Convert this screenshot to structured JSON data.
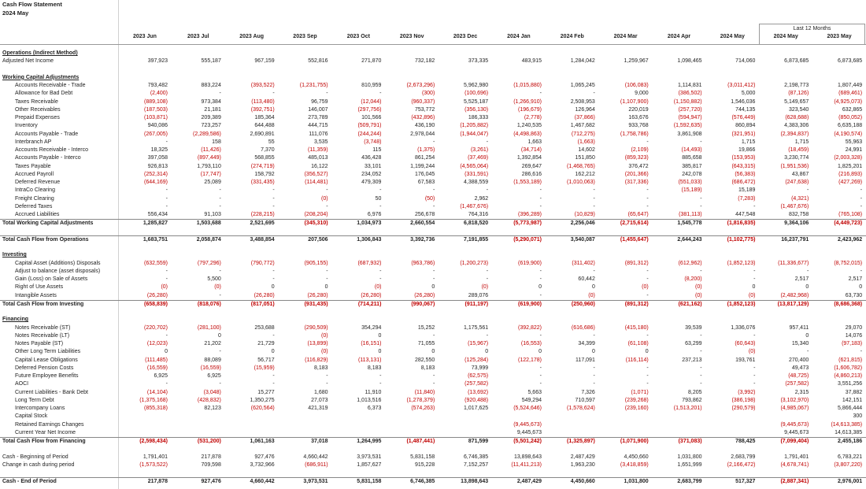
{
  "header": {
    "title": "Cash Flow Statement",
    "subtitle": "2024 May",
    "group_label": "Last 12 Months",
    "columns": [
      "2023 Jun",
      "2023 Jul",
      "2023 Aug",
      "2023 Sep",
      "2023 Oct",
      "2023 Nov",
      "2023 Dec",
      "2024 Jan",
      "2024 Feb",
      "2024 Mar",
      "2024 Apr",
      "2024 May",
      "2024 May",
      "2023 May"
    ]
  },
  "blocks": [
    [
      {
        "heading": "Operations (Indirect Method)"
      },
      {
        "label": "Adjusted Net Income",
        "values": [
          "397,923",
          "555,187",
          "967,159",
          "552,816",
          "271,870",
          "732,182",
          "373,335",
          "483,915",
          "1,284,042",
          "1,259,967",
          "1,098,465",
          "714,060",
          "6,873,685",
          "6,873,685"
        ]
      }
    ],
    [
      {
        "heading": "Working Capital Adjustments"
      },
      {
        "label": "Accounts Receivable - Trade",
        "values": [
          "793,482",
          "883,224",
          "(393,522)",
          "(1,231,755)",
          "810,959",
          "(2,673,296)",
          "5,962,980",
          "(1,015,880)",
          "1,065,245",
          "(106,083)",
          "1,114,831",
          "(3,011,412)",
          "2,198,773",
          "1,807,449"
        ]
      },
      {
        "label": "Allowance for Bad Debt",
        "values": [
          "(2,400)",
          "-",
          "-",
          "-",
          "-",
          "(300)",
          "(100,696)",
          "-",
          "-",
          "9,000",
          "(386,502)",
          "5,000",
          "(87,126)",
          "(689,461)"
        ]
      },
      {
        "label": "Taxes Receivable",
        "values": [
          "(889,108)",
          "973,384",
          "(113,480)",
          "96,759",
          "(12,044)",
          "(960,337)",
          "5,525,187",
          "(1,266,910)",
          "2,508,953",
          "(1,107,900)",
          "(1,150,882)",
          "1,546,036",
          "5,149,657",
          "(4,925,073)"
        ]
      },
      {
        "label": "Other Receivables",
        "values": [
          "(187,503)",
          "21,181",
          "(392,751)",
          "146,007",
          "(297,756)",
          "753,772",
          "(356,130)",
          "(196,679)",
          "126,964",
          "220,019",
          "(257,720)",
          "744,135",
          "323,540",
          "632,865"
        ]
      },
      {
        "label": "Prepaid Expenses",
        "values": [
          "(103,871)",
          "209,389",
          "185,364",
          "273,789",
          "101,566",
          "(432,896)",
          "186,333",
          "(2,778)",
          "(37,866)",
          "163,676",
          "(594,947)",
          "(576,449)",
          "(628,688)",
          "(850,052)"
        ]
      },
      {
        "label": "Inventory",
        "values": [
          "940,086",
          "723,257",
          "644,488",
          "444,715",
          "(509,791)",
          "436,190",
          "(1,205,882)",
          "1,240,535",
          "1,467,682",
          "933,768",
          "(1,592,635)",
          "860,894",
          "4,383,306",
          "6,635,188"
        ]
      },
      {
        "label": "Accounts Payable - Trade",
        "values": [
          "(267,005)",
          "(2,289,586)",
          "2,690,891",
          "111,076",
          "(244,244)",
          "2,978,044",
          "(1,944,047)",
          "(4,498,863)",
          "(712,275)",
          "(1,758,786)",
          "3,861,908",
          "(321,951)",
          "(2,394,837)",
          "(4,190,574)"
        ]
      },
      {
        "label": "Interbranch AP",
        "values": [
          "-",
          "158",
          "55",
          "3,535",
          "(3,748)",
          "-",
          "-",
          "1,663",
          "(1,663)",
          "-",
          "-",
          "1,715",
          "1,715",
          "55,963"
        ]
      },
      {
        "label": "Accounts Receivable - Interco",
        "values": [
          "18,325",
          "(11,426)",
          "7,370",
          "(11,359)",
          "115",
          "(1,375)",
          "(3,261)",
          "(34,714)",
          "14,602",
          "(2,109)",
          "(14,493)",
          "19,866",
          "(18,459)",
          "24,991"
        ]
      },
      {
        "label": "Accounts Payable - Interco",
        "values": [
          "397,058",
          "(897,449)",
          "568,855",
          "485,013",
          "436,428",
          "861,254",
          "(37,469)",
          "1,392,854",
          "151,850",
          "(859,323)",
          "885,658",
          "(153,953)",
          "3,230,774",
          "(2,003,328)"
        ]
      },
      {
        "label": "Taxes Payable",
        "values": [
          "926,813",
          "1,793,110",
          "(274,719)",
          "16,122",
          "33,101",
          "1,199,244",
          "(4,565,064)",
          "269,647",
          "(1,468,765)",
          "376,472",
          "385,817",
          "(643,315)",
          "(1,951,536)",
          "1,825,201"
        ]
      },
      {
        "label": "Accrued Payroll",
        "values": [
          "(252,314)",
          "(17,747)",
          "158,792",
          "(356,527)",
          "234,052",
          "176,045",
          "(331,591)",
          "286,616",
          "162,212",
          "(201,366)",
          "242,078",
          "(56,383)",
          "43,867",
          "(216,893)"
        ]
      },
      {
        "label": "Deferred Revenue",
        "values": [
          "(644,169)",
          "25,089",
          "(331,435)",
          "(114,481)",
          "479,309",
          "67,583",
          "4,388,559",
          "(1,553,189)",
          "(1,010,063)",
          "(317,336)",
          "(551,033)",
          "(686,472)",
          "(247,638)",
          "(427,269)"
        ]
      },
      {
        "label": "IntraCo Clearing",
        "values": [
          "-",
          "-",
          "-",
          "-",
          "-",
          "-",
          "-",
          "-",
          "-",
          "-",
          "(15,189)",
          "15,189",
          "-",
          "-"
        ]
      },
      {
        "label": "Freight Clearing",
        "values": [
          "-",
          "-",
          "-",
          "(0)",
          "50",
          "(50)",
          "2,962",
          "-",
          "-",
          "-",
          "-",
          "(7,283)",
          "(4,321)",
          "-"
        ]
      },
      {
        "label": "Deferred Taxes",
        "values": [
          "-",
          "-",
          "-",
          "-",
          "-",
          "-",
          "(1,467,676)",
          "-",
          "-",
          "-",
          "-",
          "-",
          "(1,467,676)",
          "-"
        ]
      },
      {
        "label": "Accrued Liabilities",
        "values": [
          "556,434",
          "91,103",
          "(228,215)",
          "(208,204)",
          "6,976",
          "256,678",
          "764,316",
          "(396,289)",
          "(10,829)",
          "(65,647)",
          "(381,113)",
          "447,548",
          "832,758",
          "(765,108)"
        ]
      },
      {
        "label": "Total Working Capital Adjustments",
        "total": true,
        "values": [
          "1,285,827",
          "1,503,688",
          "2,521,695",
          "(345,310)",
          "1,034,973",
          "2,660,554",
          "6,818,520",
          "(5,773,987)",
          "2,256,046",
          "(2,715,614)",
          "1,545,778",
          "(1,816,835)",
          "9,364,106",
          "(4,449,723)"
        ]
      }
    ],
    [
      {
        "label": "Total Cash Flow from Operations",
        "total": true,
        "values": [
          "1,683,751",
          "2,058,874",
          "3,488,854",
          "207,506",
          "1,306,843",
          "3,392,736",
          "7,191,855",
          "(5,290,071)",
          "3,540,087",
          "(1,455,647)",
          "2,644,243",
          "(1,102,775)",
          "16,237,791",
          "2,423,962"
        ]
      }
    ],
    [
      {
        "heading": "Investing"
      },
      {
        "label": "Capital Asset (Additions) Disposals",
        "values": [
          "(632,559)",
          "(797,296)",
          "(790,772)",
          "(905,155)",
          "(687,932)",
          "(963,786)",
          "(1,200,273)",
          "(619,900)",
          "(311,402)",
          "(891,312)",
          "(612,962)",
          "(1,852,123)",
          "(11,336,677)",
          "(8,752,015)"
        ]
      },
      {
        "label": "Adjust to balance (asset disposals)",
        "values": [
          "-",
          "-",
          "-",
          "-",
          "-",
          "-",
          "-",
          "-",
          "-",
          "-",
          "-",
          "-",
          "-",
          "-"
        ]
      },
      {
        "label": "Gain (Loss) on Sale of Assets",
        "values": [
          "-",
          "5,500",
          "-",
          "-",
          "-",
          "-",
          "-",
          "-",
          "60,442",
          "-",
          "(8,200)",
          "-",
          "2,517",
          "2,517"
        ]
      },
      {
        "label": "Right of Use Assets",
        "values": [
          "(0)",
          "(0)",
          "0",
          "0",
          "(0)",
          "0",
          "(0)",
          "0",
          "0",
          "(0)",
          "(0)",
          "0",
          "0",
          "0"
        ]
      },
      {
        "label": "Intangible Assets",
        "values": [
          "(26,280)",
          "-",
          "(26,280)",
          "(26,280)",
          "(26,280)",
          "(26,280)",
          "289,076",
          "-",
          "(0)",
          "-",
          "(0)",
          "(0)",
          "(2,482,968)",
          "63,730"
        ]
      },
      {
        "label": "Total Cash Flow from Investing",
        "total": true,
        "values": [
          "(658,839)",
          "(818,076)",
          "(817,051)",
          "(931,435)",
          "(714,211)",
          "(990,067)",
          "(911,197)",
          "(619,900)",
          "(250,960)",
          "(891,312)",
          "(621,162)",
          "(1,852,123)",
          "(13,817,129)",
          "(8,686,368)"
        ]
      }
    ],
    [
      {
        "heading": "Financing"
      },
      {
        "label": "Notes Receivable (ST)",
        "values": [
          "(220,702)",
          "(281,100)",
          "253,688",
          "(290,509)",
          "354,294",
          "15,252",
          "1,175,561",
          "(392,822)",
          "(616,686)",
          "(415,180)",
          "39,539",
          "1,336,076",
          "957,411",
          "29,070"
        ]
      },
      {
        "label": "Notes Receivable (LT)",
        "values": [
          "-",
          "0",
          "-",
          "(0)",
          "0",
          "-",
          "-",
          "-",
          "-",
          "-",
          "-",
          "-",
          "0",
          "14,076"
        ]
      },
      {
        "label": "Notes Payable (ST)",
        "values": [
          "(12,023)",
          "21,202",
          "21,729",
          "(13,899)",
          "(16,151)",
          "71,055",
          "(15,967)",
          "(16,553)",
          "34,399",
          "(61,108)",
          "63,299",
          "(60,643)",
          "15,340",
          "(97,183)"
        ]
      },
      {
        "label": "Other Long Term Liabilities",
        "values": [
          "0",
          "-",
          "0",
          "(0)",
          "0",
          "0",
          "0",
          "0",
          "0",
          "0",
          "-",
          "(0)",
          "-",
          "-"
        ]
      },
      {
        "label": "Capital Lease Obligations",
        "values": [
          "(111,485)",
          "88,089",
          "56,717",
          "(116,829)",
          "(113,131)",
          "282,550",
          "(125,284)",
          "(122,178)",
          "117,091",
          "(116,114)",
          "237,213",
          "193,761",
          "270,400",
          "(621,815)"
        ]
      },
      {
        "label": "Deferred Pension Costs",
        "values": [
          "(16,559)",
          "(16,559)",
          "(15,959)",
          "8,183",
          "8,183",
          "8,183",
          "73,999",
          "-",
          "-",
          "-",
          "-",
          "-",
          "49,473",
          "(1,606,782)"
        ]
      },
      {
        "label": "Future Employee Benefits",
        "values": [
          "6,925",
          "6,925",
          "-",
          "-",
          "-",
          "-",
          "(62,575)",
          "-",
          "-",
          "-",
          "-",
          "-",
          "(48,725)",
          "(4,860,213)"
        ]
      },
      {
        "label": "AOCI",
        "values": [
          "-",
          "-",
          "-",
          "-",
          "-",
          "-",
          "(257,582)",
          "-",
          "-",
          "-",
          "-",
          "-",
          "(257,582)",
          "3,551,256"
        ]
      },
      {
        "label": "Current Liabilities - Bank Debt",
        "values": [
          "(14,104)",
          "(3,048)",
          "15,277",
          "1,680",
          "11,910",
          "(11,840)",
          "(13,692)",
          "5,663",
          "7,326",
          "(1,071)",
          "8,205",
          "(3,992)",
          "2,315",
          "37,882"
        ]
      },
      {
        "label": "Long Term Debt",
        "values": [
          "(1,375,168)",
          "(428,832)",
          "1,350,275",
          "27,073",
          "1,013,516",
          "(1,278,379)",
          "(920,488)",
          "549,294",
          "710,597",
          "(239,268)",
          "793,862",
          "(386,198)",
          "(3,102,970)",
          "142,151"
        ]
      },
      {
        "label": "Intercompany Loans",
        "values": [
          "(855,318)",
          "82,123",
          "(620,564)",
          "421,319",
          "6,373",
          "(574,263)",
          "1,017,625",
          "(5,524,646)",
          "(1,578,624)",
          "(239,160)",
          "(1,513,201)",
          "(290,579)",
          "(4,985,067)",
          "5,866,444"
        ]
      },
      {
        "label": "Capital Stock",
        "values": [
          null,
          null,
          null,
          null,
          null,
          null,
          null,
          null,
          null,
          null,
          null,
          null,
          null,
          "300"
        ]
      },
      {
        "label": "Retained Earnings Changes",
        "values": [
          null,
          null,
          null,
          null,
          null,
          null,
          null,
          "(9,445,673)",
          null,
          null,
          null,
          null,
          "(9,445,673)",
          "(14,613,385)"
        ]
      },
      {
        "label": "Current Year Net Income",
        "values": [
          null,
          null,
          null,
          null,
          null,
          null,
          null,
          "9,445,673",
          null,
          null,
          null,
          null,
          "9,445,673",
          "14,613,385"
        ]
      },
      {
        "label": "Total Cash Flow from Financing",
        "total": true,
        "values": [
          "(2,598,434)",
          "(531,200)",
          "1,061,163",
          "37,018",
          "1,264,995",
          "(1,487,441)",
          "871,599",
          "(5,501,242)",
          "(1,325,897)",
          "(1,071,900)",
          "(371,083)",
          "788,425",
          "(7,099,404)",
          "2,455,186"
        ]
      }
    ],
    [
      {
        "label": "Cash - Beginning of Period",
        "values": [
          "1,791,401",
          "217,878",
          "927,476",
          "4,660,442",
          "3,973,531",
          "5,831,158",
          "6,746,385",
          "13,898,643",
          "2,487,429",
          "4,450,660",
          "1,031,800",
          "2,683,799",
          "1,791,401",
          "6,783,221"
        ]
      },
      {
        "label": "Change in cash during period",
        "values": [
          "(1,573,522)",
          "709,598",
          "3,732,966",
          "(686,911)",
          "1,857,627",
          "915,228",
          "7,152,257",
          "(11,411,213)",
          "1,963,230",
          "(3,418,859)",
          "1,651,999",
          "(2,166,472)",
          "(4,678,741)",
          "(3,807,220)"
        ]
      }
    ],
    [
      {
        "label": "Cash - End of Period",
        "total": true,
        "values": [
          "217,878",
          "927,476",
          "4,660,442",
          "3,973,531",
          "5,831,158",
          "6,746,385",
          "13,898,643",
          "2,487,429",
          "4,450,660",
          "1,031,800",
          "2,683,799",
          "517,327",
          "(2,887,341)",
          "2,976,001"
        ]
      }
    ]
  ]
}
